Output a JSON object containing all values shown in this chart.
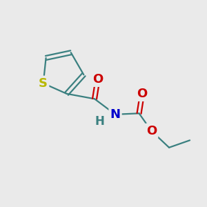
{
  "background_color": "#eaeaea",
  "bond_color": "#3a8080",
  "S_color": "#b8b800",
  "N_color": "#0000cc",
  "O_color": "#cc0000",
  "H_color": "#3a8080",
  "figsize": [
    3.0,
    3.0
  ],
  "dpi": 100,
  "xlim": [
    0,
    10
  ],
  "ylim": [
    0,
    10
  ],
  "lw": 1.6,
  "fs": 13
}
